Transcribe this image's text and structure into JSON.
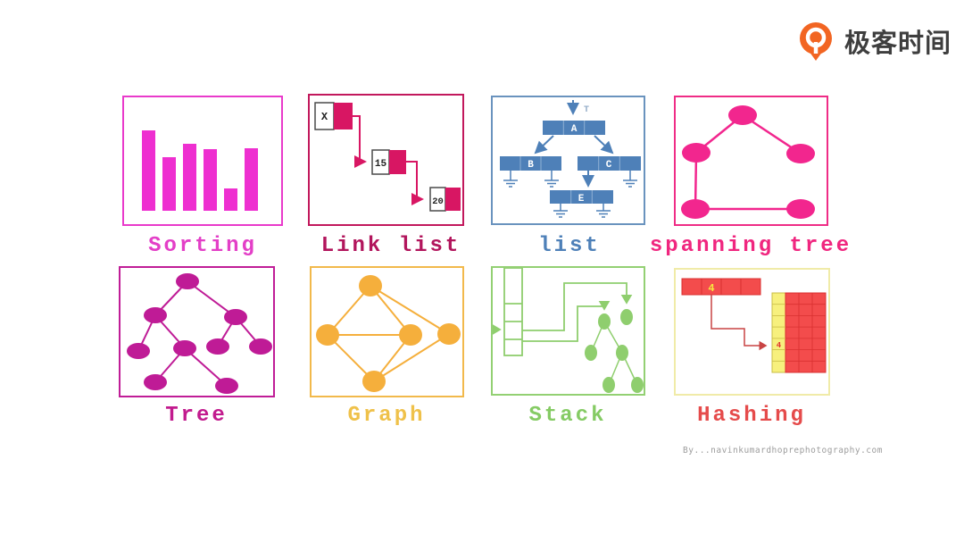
{
  "logo": {
    "name": "极客时间",
    "brand_color": "#F26522",
    "text_color": "#3E3E3E"
  },
  "credit": "By...navinkumardhoprephotography.com",
  "panels": [
    {
      "key": "sorting",
      "label": "Sorting",
      "type": "bar-chart",
      "accent": "#E33FC7",
      "border": "#E93ACB",
      "bar_color": "#EE2FD0",
      "bars": [
        90,
        60,
        75,
        69,
        25,
        70
      ]
    },
    {
      "key": "link-list",
      "label": "Link list",
      "type": "linked-list",
      "accent": "#B2155C",
      "border": "#C2185C",
      "node_color": "#D81663",
      "nodes": [
        "X",
        "15",
        "20"
      ]
    },
    {
      "key": "list",
      "label": "list",
      "type": "cell-tree",
      "accent": "#4E80B8",
      "border": "#6A93BE",
      "node_color": "#4E80B8",
      "head_label": "T",
      "nodes": [
        "A",
        "B",
        "C",
        "E"
      ]
    },
    {
      "key": "spanning-tree",
      "label": "spanning tree",
      "type": "node-graph",
      "accent": "#F0267F",
      "border": "#EF2C86",
      "node_color": "#F2268E",
      "node_count": 5,
      "edge_count": 4
    },
    {
      "key": "tree",
      "label": "Tree",
      "type": "node-tree",
      "accent": "#C21B8E",
      "border": "#C01D97",
      "node_color": "#BF1B96",
      "node_count": 9
    },
    {
      "key": "graph",
      "label": "Graph",
      "type": "node-graph",
      "accent": "#EFC14A",
      "border": "#F2B94B",
      "node_color": "#F5AF3C",
      "node_count": 5,
      "edge_count": 7
    },
    {
      "key": "stack",
      "label": "Stack",
      "type": "stack-with-pointers",
      "accent": "#85CB64",
      "border": "#93D073",
      "node_color": "#8FCE6E"
    },
    {
      "key": "hashing",
      "label": "Hashing",
      "type": "hash-table",
      "accent": "#E54B4B",
      "border": "#F0EBA8",
      "cell_color": "#F34C4C",
      "bucket_color": "#F7F07D",
      "key_value": "4",
      "bucket_value": "4"
    }
  ]
}
